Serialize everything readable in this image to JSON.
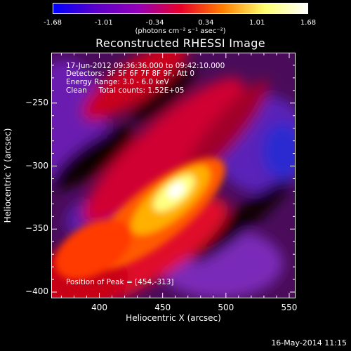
{
  "colorbar": {
    "ticks": [
      "-1.68",
      "-1.01",
      "-0.34",
      "0.34",
      "1.01",
      "1.68"
    ],
    "units": "(photons cm⁻² s⁻¹ asec⁻²)",
    "colors": [
      "#0000ff",
      "#5b00c8",
      "#9400b8",
      "#e8002a",
      "#ff7e00",
      "#ffff70",
      "#ffffff"
    ]
  },
  "chart_data": {
    "type": "heatmap",
    "title": "Reconstructed RHESSI Image",
    "xlabel": "Heliocentric X (arcsec)",
    "ylabel": "Heliocentric Y (arcsec)",
    "xlim": [
      362,
      555
    ],
    "ylim": [
      -405,
      -210
    ],
    "xticks": [
      400,
      450,
      500,
      550
    ],
    "yticks": [
      -250,
      -300,
      -350,
      -400
    ],
    "value_range": [
      -1.68,
      1.68
    ],
    "peak": {
      "x": 454,
      "y": -313
    },
    "annotations": {
      "time": "17-Jun-2012 09:36:36.000 to 09:42:10.000",
      "detectors": "Detectors: 3F 5F 6F 7F 8F 9F, Att 0",
      "energy": "Energy Range: 3.0 - 6.0 keV",
      "method": "Clean     Total counts: 1.52E+05",
      "peak_label": "Position of Peak = [454,-313]"
    }
  },
  "footer": "16-May-2014 11:15"
}
